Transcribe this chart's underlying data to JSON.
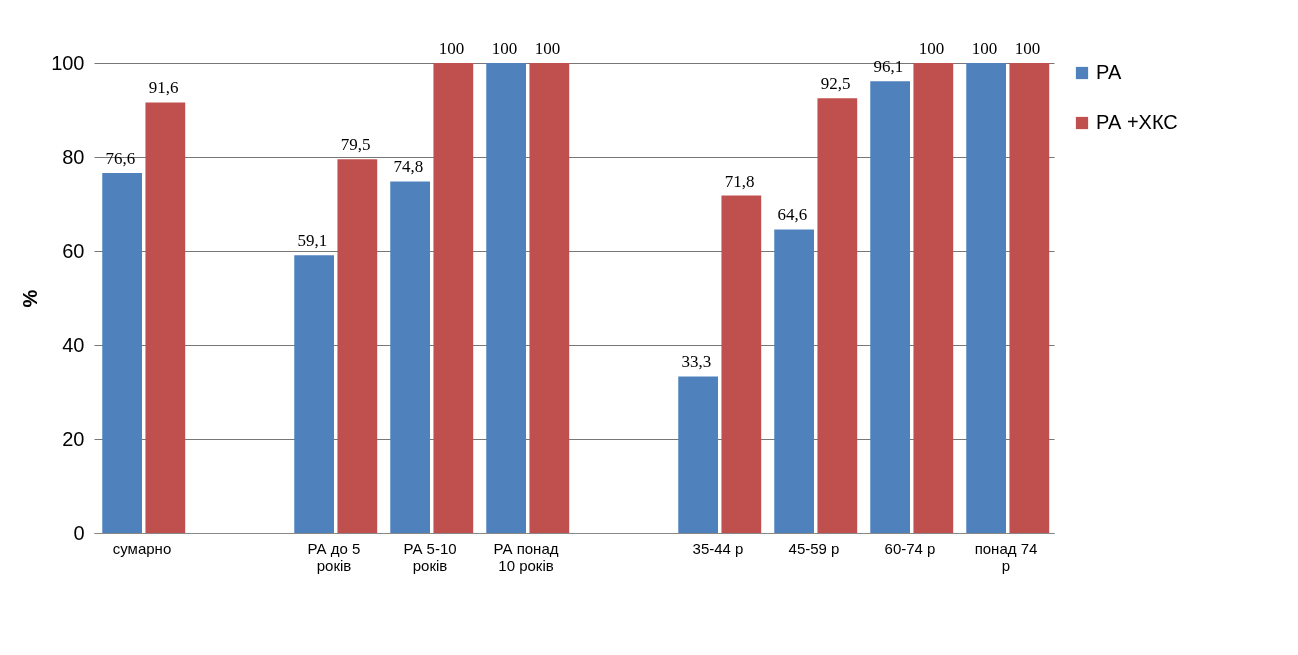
{
  "chart_data": {
    "type": "bar",
    "ylabel": "%",
    "categories": [
      "сумарно",
      null,
      "РА до 5 років",
      "РА 5-10 років",
      "РА понад 10 років",
      null,
      "35-44 р",
      "45-59 р",
      "60-74 р",
      "понад 74 р"
    ],
    "series": [
      {
        "name": "РА",
        "color": "#4f81bd",
        "values": [
          76.6,
          null,
          59.1,
          74.8,
          100,
          null,
          33.3,
          64.6,
          96.1,
          100
        ],
        "value_labels": [
          "76,6",
          null,
          "59,1",
          "74,8",
          "100",
          null,
          "33,3",
          "64,6",
          "96,1",
          "100"
        ]
      },
      {
        "name": "РА +ХКС",
        "color": "#c0504d",
        "values": [
          91.6,
          null,
          79.5,
          100,
          100,
          null,
          71.8,
          92.5,
          100,
          100
        ],
        "value_labels": [
          "91,6",
          null,
          "79,5",
          "100",
          "100",
          null,
          "71,8",
          "92,5",
          "100",
          "100"
        ]
      }
    ],
    "ylim": [
      0,
      100
    ],
    "yticks": [
      0,
      20,
      40,
      60,
      80,
      100
    ],
    "grid": "y",
    "legend": "right"
  }
}
